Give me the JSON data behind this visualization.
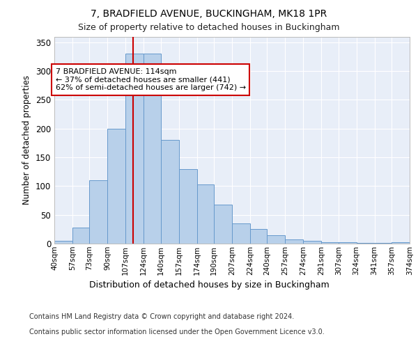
{
  "title1": "7, BRADFIELD AVENUE, BUCKINGHAM, MK18 1PR",
  "title2": "Size of property relative to detached houses in Buckingham",
  "xlabel": "Distribution of detached houses by size in Buckingham",
  "ylabel": "Number of detached properties",
  "bins": [
    40,
    57,
    73,
    90,
    107,
    124,
    140,
    157,
    174,
    190,
    207,
    224,
    240,
    257,
    274,
    291,
    307,
    324,
    341,
    357,
    374
  ],
  "bin_labels": [
    "40sqm",
    "57sqm",
    "73sqm",
    "90sqm",
    "107sqm",
    "124sqm",
    "140sqm",
    "157sqm",
    "174sqm",
    "190sqm",
    "207sqm",
    "224sqm",
    "240sqm",
    "257sqm",
    "274sqm",
    "291sqm",
    "307sqm",
    "324sqm",
    "341sqm",
    "357sqm",
    "374sqm"
  ],
  "counts": [
    5,
    28,
    110,
    200,
    330,
    330,
    180,
    130,
    103,
    68,
    35,
    25,
    15,
    7,
    5,
    3,
    3,
    1,
    1,
    3
  ],
  "bar_color": "#b8d0ea",
  "bar_edge_color": "#6699cc",
  "property_value": 114,
  "property_line_color": "#cc0000",
  "annotation_text": "7 BRADFIELD AVENUE: 114sqm\n← 37% of detached houses are smaller (441)\n62% of semi-detached houses are larger (742) →",
  "annotation_box_color": "white",
  "annotation_box_edge_color": "#cc0000",
  "ylim": [
    0,
    360
  ],
  "yticks": [
    0,
    50,
    100,
    150,
    200,
    250,
    300,
    350
  ],
  "bg_color": "#e8eef8",
  "footer1": "Contains HM Land Registry data © Crown copyright and database right 2024.",
  "footer2": "Contains public sector information licensed under the Open Government Licence v3.0."
}
